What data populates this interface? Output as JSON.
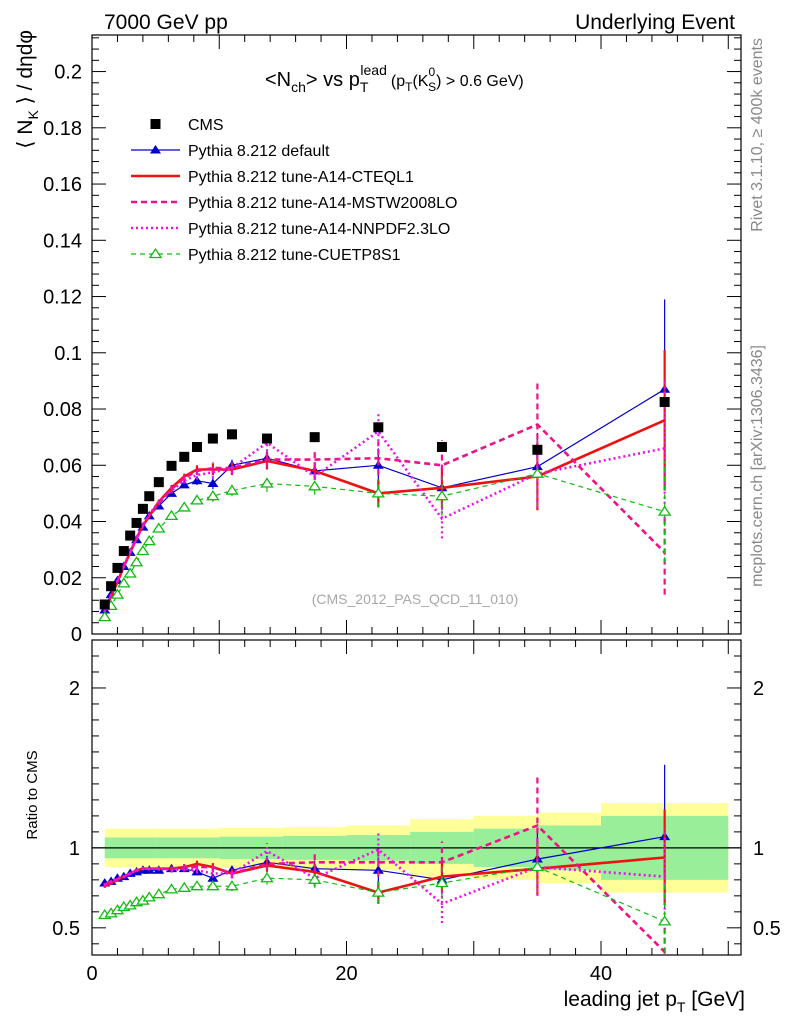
{
  "header": {
    "left": "7000 GeV pp",
    "right": "Underlying Event",
    "side_top": "Rivet 3.1.10, ≥ 400k events",
    "side_bottom": "mcplots.cern.ch [arXiv:1306.3436]"
  },
  "chart_data": [
    {
      "type": "line",
      "panel": "main",
      "title": "<N_ch> vs p_T^lead (p_T(K_S^0) > 0.6 GeV)",
      "title_parts": {
        "lead": "<N",
        "sub1": "ch",
        "mid": "> vs p",
        "sub2": "T",
        "sup2": "lead",
        "tail_open": "(p",
        "sub3": "T",
        "tail_mid": "(K",
        "sup4": "0",
        "sub4": "S",
        "tail_close": ") > 0.6 GeV)"
      },
      "ylabel": "⟨ N_K ⟩ / dηdφ",
      "ylabel_parts": {
        "a": "⟨ N",
        "sub": "K",
        "b": " ⟩ / dηdφ"
      },
      "watermark": "(CMS_2012_PAS_QCD_11_010)",
      "xlim": [
        0,
        51
      ],
      "ylim": [
        0,
        0.213
      ],
      "y_ticks": [
        0,
        0.02,
        0.04,
        0.06,
        0.08,
        0.1,
        0.12,
        0.14,
        0.16,
        0.18,
        0.2
      ],
      "y_tick_labels": [
        "0",
        "0.02",
        "0.04",
        "0.06",
        "0.08",
        "0.1",
        "0.12",
        "0.14",
        "0.16",
        "0.18",
        "0.2"
      ],
      "legend_position": "top-left",
      "cms": {
        "name": "CMS",
        "x": [
          1.0,
          1.5,
          2.0,
          2.5,
          3.0,
          3.5,
          4.0,
          4.5,
          5.25,
          6.25,
          7.25,
          8.25,
          9.5,
          11.0,
          13.75,
          17.5,
          22.5,
          27.5,
          35.0,
          45.0
        ],
        "y": [
          0.0105,
          0.017,
          0.0235,
          0.0295,
          0.035,
          0.0395,
          0.0445,
          0.049,
          0.054,
          0.0598,
          0.063,
          0.0665,
          0.0695,
          0.071,
          0.0695,
          0.07,
          0.0735,
          0.0665,
          0.0655,
          0.0825
        ]
      },
      "series": [
        {
          "name": "Pythia 8.212 default",
          "color": "#0000cc",
          "dash": "",
          "width": 1.2,
          "marker": "triangle-filled",
          "x": [
            1.0,
            1.5,
            2.0,
            2.5,
            3.0,
            3.5,
            4.0,
            4.5,
            5.25,
            6.25,
            7.25,
            8.25,
            9.5,
            11.0,
            13.75,
            17.5,
            22.5,
            27.5,
            35.0,
            45.0
          ],
          "y": [
            0.0085,
            0.014,
            0.019,
            0.024,
            0.029,
            0.0335,
            0.038,
            0.042,
            0.0455,
            0.05,
            0.053,
            0.0545,
            0.0535,
            0.06,
            0.0625,
            0.058,
            0.06,
            0.052,
            0.0595,
            0.087
          ],
          "err": [
            0.0005,
            0.0005,
            0.0005,
            0.0005,
            0.0005,
            0.0005,
            0.0005,
            0.0005,
            0.0008,
            0.001,
            0.001,
            0.0015,
            0.002,
            0.002,
            0.003,
            0.003,
            0.006,
            0.008,
            0.012,
            0.032
          ],
          "ratio": [
            0.78,
            0.79,
            0.81,
            0.82,
            0.84,
            0.85,
            0.86,
            0.86,
            0.86,
            0.87,
            0.87,
            0.85,
            0.81,
            0.86,
            0.91,
            0.87,
            0.86,
            0.8,
            0.93,
            1.07
          ],
          "ratio_err": [
            0.01,
            0.01,
            0.01,
            0.01,
            0.01,
            0.01,
            0.01,
            0.01,
            0.012,
            0.015,
            0.018,
            0.02,
            0.025,
            0.03,
            0.04,
            0.05,
            0.08,
            0.1,
            0.18,
            0.45
          ]
        },
        {
          "name": "Pythia 8.212 tune-A14-CTEQL1",
          "color": "#ee1111",
          "dash": "",
          "width": 2.6,
          "marker": "none",
          "x": [
            1.0,
            1.5,
            2.0,
            2.5,
            3.0,
            3.5,
            4.0,
            4.5,
            5.25,
            6.25,
            7.25,
            8.25,
            9.5,
            11.0,
            13.75,
            17.5,
            22.5,
            27.5,
            35.0,
            45.0
          ],
          "y": [
            0.0082,
            0.0135,
            0.0185,
            0.024,
            0.029,
            0.034,
            0.0385,
            0.042,
            0.047,
            0.052,
            0.056,
            0.0585,
            0.0585,
            0.0585,
            0.0615,
            0.058,
            0.05,
            0.052,
            0.056,
            0.076
          ],
          "err": [
            0.0005,
            0.0005,
            0.0005,
            0.0005,
            0.0005,
            0.0005,
            0.0005,
            0.0005,
            0.0008,
            0.001,
            0.001,
            0.0015,
            0.002,
            0.002,
            0.003,
            0.003,
            0.005,
            0.007,
            0.012,
            0.025
          ],
          "ratio": [
            0.76,
            0.78,
            0.8,
            0.82,
            0.84,
            0.86,
            0.87,
            0.87,
            0.87,
            0.87,
            0.88,
            0.9,
            0.88,
            0.84,
            0.89,
            0.85,
            0.72,
            0.82,
            0.87,
            0.94
          ],
          "ratio_err": [
            0.01,
            0.01,
            0.01,
            0.01,
            0.01,
            0.01,
            0.01,
            0.01,
            0.012,
            0.015,
            0.018,
            0.02,
            0.025,
            0.03,
            0.04,
            0.05,
            0.07,
            0.09,
            0.16,
            0.3
          ]
        },
        {
          "name": "Pythia 8.212 tune-A14-MSTW2008LO",
          "color": "#ee1188",
          "dash": "6,4",
          "width": 2.6,
          "marker": "none",
          "x": [
            1.0,
            1.5,
            2.0,
            2.5,
            3.0,
            3.5,
            4.0,
            4.5,
            5.25,
            6.25,
            7.25,
            8.25,
            9.5,
            11.0,
            13.75,
            17.5,
            22.5,
            27.5,
            35.0,
            45.0
          ],
          "y": [
            0.0083,
            0.0138,
            0.0188,
            0.024,
            0.029,
            0.034,
            0.0385,
            0.042,
            0.0465,
            0.0515,
            0.0555,
            0.058,
            0.059,
            0.059,
            0.062,
            0.062,
            0.0625,
            0.06,
            0.0745,
            0.029
          ],
          "err": [
            0.0005,
            0.0005,
            0.0005,
            0.0005,
            0.0005,
            0.0005,
            0.0005,
            0.0005,
            0.0008,
            0.001,
            0.001,
            0.0015,
            0.002,
            0.002,
            0.003,
            0.003,
            0.006,
            0.009,
            0.016,
            0.015
          ],
          "ratio": [
            0.77,
            0.79,
            0.8,
            0.82,
            0.84,
            0.86,
            0.87,
            0.87,
            0.87,
            0.87,
            0.88,
            0.88,
            0.88,
            0.84,
            0.9,
            0.91,
            0.91,
            0.91,
            1.14,
            0.35
          ],
          "ratio_err": [
            0.01,
            0.01,
            0.01,
            0.01,
            0.01,
            0.01,
            0.01,
            0.01,
            0.012,
            0.015,
            0.018,
            0.02,
            0.025,
            0.03,
            0.04,
            0.05,
            0.09,
            0.13,
            0.3,
            0.2
          ]
        },
        {
          "name": "Pythia 8.212 tune-A14-NNPDF2.3LO",
          "color": "#ee11ee",
          "dash": "2,3",
          "width": 2.6,
          "marker": "none",
          "x": [
            1.0,
            1.5,
            2.0,
            2.5,
            3.0,
            3.5,
            4.0,
            4.5,
            5.25,
            6.25,
            7.25,
            8.25,
            9.5,
            11.0,
            13.75,
            17.5,
            22.5,
            27.5,
            35.0,
            45.0
          ],
          "y": [
            0.0084,
            0.0138,
            0.019,
            0.0242,
            0.0293,
            0.034,
            0.0388,
            0.0425,
            0.047,
            0.051,
            0.0545,
            0.0565,
            0.0575,
            0.059,
            0.068,
            0.056,
            0.072,
            0.041,
            0.057,
            0.066
          ],
          "err": [
            0.0005,
            0.0005,
            0.0005,
            0.0005,
            0.0005,
            0.0005,
            0.0005,
            0.0005,
            0.0008,
            0.001,
            0.001,
            0.0015,
            0.002,
            0.002,
            0.003,
            0.003,
            0.007,
            0.007,
            0.012,
            0.025
          ],
          "ratio": [
            0.77,
            0.79,
            0.81,
            0.82,
            0.84,
            0.86,
            0.87,
            0.87,
            0.87,
            0.86,
            0.87,
            0.86,
            0.84,
            0.84,
            0.98,
            0.81,
            0.99,
            0.65,
            0.88,
            0.82
          ],
          "ratio_err": [
            0.01,
            0.01,
            0.01,
            0.01,
            0.01,
            0.01,
            0.01,
            0.01,
            0.012,
            0.015,
            0.018,
            0.02,
            0.025,
            0.03,
            0.05,
            0.05,
            0.1,
            0.12,
            0.18,
            0.3
          ]
        },
        {
          "name": "Pythia 8.212 tune-CUETP8S1",
          "color": "#11bb11",
          "dash": "5,4",
          "width": 1.2,
          "marker": "triangle-open",
          "x": [
            1.0,
            1.5,
            2.0,
            2.5,
            3.0,
            3.5,
            4.0,
            4.5,
            5.25,
            6.25,
            7.25,
            8.25,
            9.5,
            11.0,
            13.75,
            17.5,
            22.5,
            27.5,
            35.0,
            45.0
          ],
          "y": [
            0.006,
            0.01,
            0.014,
            0.018,
            0.0215,
            0.0255,
            0.0295,
            0.033,
            0.0375,
            0.042,
            0.045,
            0.0475,
            0.049,
            0.051,
            0.0535,
            0.0525,
            0.05,
            0.049,
            0.057,
            0.0435
          ],
          "err": [
            0.0005,
            0.0005,
            0.0005,
            0.0005,
            0.0005,
            0.0005,
            0.0005,
            0.0005,
            0.0008,
            0.001,
            0.001,
            0.0015,
            0.002,
            0.002,
            0.003,
            0.003,
            0.005,
            0.007,
            0.012,
            0.018
          ],
          "ratio": [
            0.58,
            0.59,
            0.61,
            0.63,
            0.64,
            0.66,
            0.67,
            0.69,
            0.71,
            0.74,
            0.75,
            0.76,
            0.76,
            0.76,
            0.81,
            0.8,
            0.72,
            0.78,
            0.88,
            0.54
          ],
          "ratio_err": [
            0.01,
            0.01,
            0.01,
            0.01,
            0.01,
            0.01,
            0.01,
            0.01,
            0.012,
            0.015,
            0.018,
            0.02,
            0.025,
            0.03,
            0.04,
            0.05,
            0.07,
            0.1,
            0.16,
            0.25
          ]
        }
      ]
    },
    {
      "type": "line",
      "panel": "ratio",
      "ylabel": "Ratio to CMS",
      "xlabel": "leading jet p_T [GeV]",
      "xlabel_parts": {
        "a": "leading jet p",
        "sub": "T",
        "b": " [GeV]"
      },
      "xlim": [
        0,
        51
      ],
      "ylim": [
        0.33,
        2.3
      ],
      "x_ticks": [
        0,
        20,
        40
      ],
      "x_tick_labels": [
        "0",
        "20",
        "40"
      ],
      "y_tick_labels": {
        "0.5": "0.5",
        "1": "1",
        "2": "2"
      },
      "bands": {
        "edges": [
          1,
          10,
          20,
          25,
          30,
          40,
          50
        ],
        "stat": [
          0.04,
          0.05,
          0.06,
          0.07,
          0.09,
          0.11,
          0.18
        ],
        "total": [
          0.07,
          0.08,
          0.09,
          0.11,
          0.14,
          0.18,
          0.28
        ],
        "edges_fine": [
          1,
          5,
          10,
          15,
          20,
          25,
          30,
          35,
          40,
          50
        ],
        "stat_fine": [
          0.065,
          0.065,
          0.07,
          0.075,
          0.08,
          0.1,
          0.12,
          0.14,
          0.2
        ],
        "total_fine": [
          0.12,
          0.12,
          0.125,
          0.13,
          0.14,
          0.18,
          0.2,
          0.22,
          0.28
        ],
        "colors": {
          "total": "#ffff99",
          "stat": "#99ee99"
        }
      }
    }
  ]
}
